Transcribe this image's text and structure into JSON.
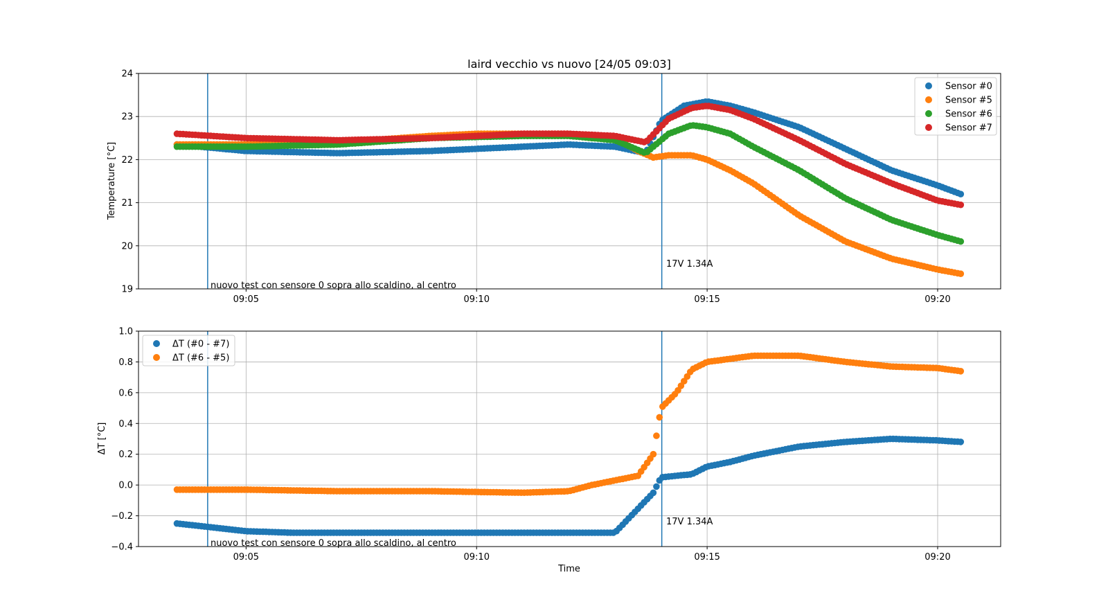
{
  "chart_data": [
    {
      "type": "scatter",
      "title": "laird vecchio vs nuovo [24/05 09:03]",
      "xlabel": "",
      "ylabel": "Temperature [°C]",
      "xlim": [
        "09:02:40",
        "09:21:22"
      ],
      "ylim": [
        19,
        24
      ],
      "x_ticks": [
        "09:05",
        "09:10",
        "09:15",
        "09:20"
      ],
      "y_ticks": [
        19,
        20,
        21,
        22,
        23,
        24
      ],
      "grid": true,
      "legend_position": "top-right",
      "vlines": [
        {
          "x": "09:04:10",
          "label": "nuovo test con sensore 0 sopra allo scaldino, al centro"
        },
        {
          "x": "09:14:01",
          "label": "17V 1.34A"
        }
      ],
      "series": [
        {
          "name": "Sensor #0",
          "color": "#1f77b4",
          "x": [
            "09:03:30",
            "09:05:00",
            "09:07:00",
            "09:09:00",
            "09:11:00",
            "09:12:00",
            "09:13:00",
            "09:13:40",
            "09:14:00",
            "09:14:30",
            "09:15:00",
            "09:15:30",
            "09:16:00",
            "09:17:00",
            "09:18:00",
            "09:19:00",
            "09:20:00",
            "09:20:30"
          ],
          "y": [
            22.35,
            22.2,
            22.15,
            22.2,
            22.3,
            22.35,
            22.3,
            22.15,
            22.9,
            23.25,
            23.35,
            23.25,
            23.1,
            22.75,
            22.25,
            21.75,
            21.4,
            21.2
          ]
        },
        {
          "name": "Sensor #5",
          "color": "#ff7f0e",
          "x": [
            "09:03:30",
            "09:05:00",
            "09:07:00",
            "09:09:00",
            "09:10:00",
            "09:11:00",
            "09:12:00",
            "09:13:00",
            "09:13:30",
            "09:13:50",
            "09:14:10",
            "09:14:40",
            "09:15:00",
            "09:15:30",
            "09:16:00",
            "09:17:00",
            "09:18:00",
            "09:19:00",
            "09:20:00",
            "09:20:30"
          ],
          "y": [
            22.35,
            22.35,
            22.4,
            22.55,
            22.6,
            22.6,
            22.6,
            22.5,
            22.2,
            22.05,
            22.1,
            22.1,
            22.0,
            21.75,
            21.45,
            20.7,
            20.1,
            19.7,
            19.45,
            19.35
          ]
        },
        {
          "name": "Sensor #6",
          "color": "#2ca02c",
          "x": [
            "09:03:30",
            "09:05:00",
            "09:07:00",
            "09:09:00",
            "09:11:00",
            "09:12:00",
            "09:13:00",
            "09:13:40",
            "09:14:10",
            "09:14:40",
            "09:15:00",
            "09:15:30",
            "09:16:00",
            "09:17:00",
            "09:18:00",
            "09:19:00",
            "09:20:00",
            "09:20:30"
          ],
          "y": [
            22.3,
            22.3,
            22.35,
            22.5,
            22.55,
            22.55,
            22.45,
            22.15,
            22.6,
            22.8,
            22.75,
            22.6,
            22.3,
            21.75,
            21.1,
            20.6,
            20.25,
            20.1
          ]
        },
        {
          "name": "Sensor #7",
          "color": "#d62728",
          "x": [
            "09:03:30",
            "09:05:00",
            "09:07:00",
            "09:09:00",
            "09:11:00",
            "09:12:00",
            "09:13:00",
            "09:13:40",
            "09:14:10",
            "09:14:40",
            "09:15:00",
            "09:15:30",
            "09:16:00",
            "09:17:00",
            "09:18:00",
            "09:19:00",
            "09:20:00",
            "09:20:30"
          ],
          "y": [
            22.6,
            22.5,
            22.45,
            22.5,
            22.6,
            22.6,
            22.55,
            22.4,
            22.95,
            23.2,
            23.25,
            23.15,
            22.95,
            22.45,
            21.9,
            21.45,
            21.05,
            20.95
          ]
        }
      ]
    },
    {
      "type": "scatter",
      "title": "",
      "xlabel": "Time",
      "ylabel": "ΔT [°C]",
      "xlim": [
        "09:02:40",
        "09:21:22"
      ],
      "ylim": [
        -0.4,
        1.0
      ],
      "x_ticks": [
        "09:05",
        "09:10",
        "09:15",
        "09:20"
      ],
      "y_ticks": [
        "−0.4",
        "−0.2",
        "0.0",
        "0.2",
        "0.4",
        "0.6",
        "0.8",
        "1.0"
      ],
      "grid": true,
      "legend_position": "top-left",
      "vlines": [
        {
          "x": "09:04:10",
          "label": "nuovo test con sensore 0 sopra allo scaldino, al centro"
        },
        {
          "x": "09:14:01",
          "label": "17V 1.34A"
        }
      ],
      "series": [
        {
          "name": "ΔT (#0 - #7)",
          "color": "#1f77b4",
          "x": [
            "09:03:30",
            "09:05:00",
            "09:06:00",
            "09:08:00",
            "09:10:00",
            "09:12:00",
            "09:13:00",
            "09:13:50",
            "09:14:00",
            "09:14:40",
            "09:15:00",
            "09:15:30",
            "09:16:00",
            "09:17:00",
            "09:18:00",
            "09:19:00",
            "09:20:00",
            "09:20:30"
          ],
          "y": [
            -0.25,
            -0.3,
            -0.31,
            -0.31,
            -0.31,
            -0.31,
            -0.31,
            -0.05,
            0.05,
            0.07,
            0.12,
            0.15,
            0.19,
            0.25,
            0.28,
            0.3,
            0.29,
            0.28
          ]
        },
        {
          "name": "ΔT (#6 - #5)",
          "color": "#ff7f0e",
          "x": [
            "09:03:30",
            "09:05:00",
            "09:07:00",
            "09:09:00",
            "09:11:00",
            "09:12:00",
            "09:12:30",
            "09:13:00",
            "09:13:30",
            "09:13:50",
            "09:14:00",
            "09:14:20",
            "09:14:40",
            "09:15:00",
            "09:15:30",
            "09:16:00",
            "09:17:00",
            "09:18:00",
            "09:19:00",
            "09:20:00",
            "09:20:30"
          ],
          "y": [
            -0.03,
            -0.03,
            -0.04,
            -0.04,
            -0.05,
            -0.04,
            0.0,
            0.03,
            0.06,
            0.2,
            0.5,
            0.6,
            0.75,
            0.8,
            0.82,
            0.84,
            0.84,
            0.8,
            0.77,
            0.76,
            0.74
          ]
        }
      ]
    }
  ]
}
